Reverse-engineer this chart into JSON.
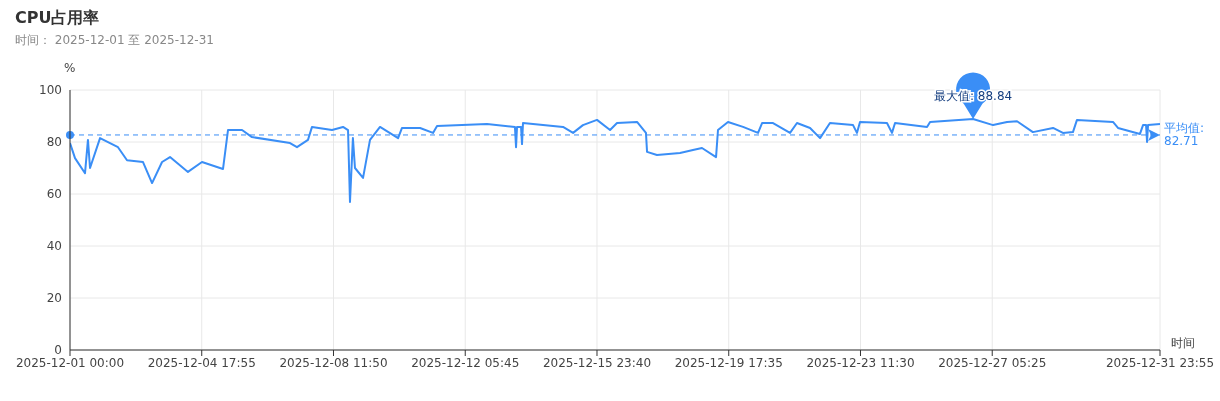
{
  "chart_data": {
    "type": "line",
    "title": "CPU占用率",
    "subtitle": "时间： 2025-12-01 至 2025-12-31",
    "xlabel": "时间",
    "ylabel": "%",
    "x": [
      "2025-12-01T00:00",
      "2025-12-01T03:25",
      "2025-12-01T10:15",
      "2025-12-01T12:15",
      "2025-12-01T13:40",
      "2025-12-01T20:30",
      "2025-12-02T08:45",
      "2025-12-02T14:55",
      "2025-12-03T01:50",
      "2025-12-03T08:00",
      "2025-12-03T14:50",
      "2025-12-03T20:15",
      "2025-12-04T08:30",
      "2025-12-04T18:05",
      "2025-12-05T08:25",
      "2025-12-05T11:50",
      "2025-12-05T21:25",
      "2025-12-06T04:10",
      "2025-12-07T06:10",
      "2025-12-07T10:55",
      "2025-12-07T18:25",
      "2025-12-07T21:10",
      "2025-12-08T10:50",
      "2025-12-08T18:20",
      "2025-12-08T21:45",
      "2025-12-08T23:05",
      "2025-12-09T01:05",
      "2025-12-09T02:30",
      "2025-12-09T08:00",
      "2025-12-09T12:45",
      "2025-12-09T19:35",
      "2025-12-10T07:55",
      "2025-12-10T10:35",
      "2025-12-10T22:55",
      "2025-12-11T07:45",
      "2025-12-11T10:30",
      "2025-12-12T20:35",
      "2025-12-13T15:40",
      "2025-12-13T16:25",
      "2025-12-13T17:05",
      "2025-12-13T19:50",
      "2025-12-13T20:30",
      "2025-12-13T21:10",
      "2025-12-15T00:30",
      "2025-12-15T07:20",
      "2025-12-15T14:05",
      "2025-12-15T23:40",
      "2025-12-16T08:35",
      "2025-12-16T13:20",
      "2025-12-17T03:00",
      "2025-12-17T09:05",
      "2025-12-17T09:50",
      "2025-12-17T16:35",
      "2025-12-18T08:20",
      "2025-12-18T17:10",
      "2025-12-18T23:20",
      "2025-12-19T08:55",
      "2025-12-19T10:15",
      "2025-12-19T17:05",
      "2025-12-20T03:20",
      "2025-12-20T13:35",
      "2025-12-20T16:20",
      "2025-12-20T23:50",
      "2025-12-21T11:25",
      "2025-12-21T16:10",
      "2025-12-22T01:05",
      "2025-12-22T07:55",
      "2025-12-22T14:40",
      "2025-12-23T06:25",
      "2025-12-23T09:05",
      "2025-12-23T11:10",
      "2025-12-24T05:35",
      "2025-12-24T09:00",
      "2025-12-24T11:05",
      "2025-12-25T08:55",
      "2025-12-25T11:00",
      "2025-12-26T16:20",
      "2025-12-27T06:00",
      "2025-12-27T15:30",
      "2025-12-27T22:20",
      "2025-12-28T09:10",
      "2025-12-28T22:55",
      "2025-12-29T05:40",
      "2025-12-29T12:30",
      "2025-12-29T15:15",
      "2025-12-30T15:50",
      "2025-12-30T19:15",
      "2025-12-31T10:15",
      "2025-12-31T12:20",
      "2025-12-31T14:25",
      "2025-12-31T15:05",
      "2025-12-31T15:45",
      "2025-12-31T23:55"
    ],
    "series": [
      {
        "color": "#3a8ef6",
        "values": [
          79.6,
          73.8,
          68,
          80.8,
          70,
          81.5,
          78,
          73,
          72.3,
          64.2,
          72.3,
          74.2,
          68.5,
          72.3,
          69.6,
          84.6,
          84.6,
          81.9,
          79.6,
          78,
          80.8,
          85.8,
          84.6,
          85.8,
          84.6,
          56.9,
          81.5,
          70,
          66.2,
          80.8,
          85.8,
          81.5,
          85.4,
          85.4,
          83.5,
          86.2,
          86.9,
          85.8,
          78,
          85.8,
          85.8,
          79.2,
          87.3,
          85.8,
          83.5,
          86.5,
          88.5,
          84.6,
          87.3,
          87.7,
          83.5,
          76.2,
          75,
          75.8,
          76.9,
          77.7,
          74.2,
          84.6,
          87.7,
          85.8,
          83.5,
          87.3,
          87.3,
          83.5,
          87.3,
          85.4,
          81.5,
          87.3,
          86.5,
          83.5,
          87.7,
          87.3,
          83.5,
          87.3,
          85.8,
          87.7,
          88.84,
          86.5,
          87.7,
          88,
          83.8,
          85.4,
          83.5,
          83.8,
          88.5,
          87.7,
          85.4,
          83.1,
          86.5,
          86.5,
          80,
          86.5,
          86.9
        ]
      }
    ],
    "xlim": [
      "2025-12-01T00:00",
      "2025-12-31T23:55"
    ],
    "xticks": [
      {
        "value": "2025-12-01T00:00",
        "label": "2025-12-01 00:00"
      },
      {
        "value": "2025-12-04T17:55",
        "label": "2025-12-04 17:55"
      },
      {
        "value": "2025-12-08T11:50",
        "label": "2025-12-08 11:50"
      },
      {
        "value": "2025-12-12T05:45",
        "label": "2025-12-12 05:45"
      },
      {
        "value": "2025-12-15T23:40",
        "label": "2025-12-15 23:40"
      },
      {
        "value": "2025-12-19T17:35",
        "label": "2025-12-19 17:35"
      },
      {
        "value": "2025-12-23T11:30",
        "label": "2025-12-23 11:30"
      },
      {
        "value": "2025-12-27T05:25",
        "label": "2025-12-27 05:25"
      },
      {
        "value": "2025-12-31T23:55",
        "label": "2025-12-31 23:55"
      }
    ],
    "ylim": [
      0,
      100
    ],
    "yticks": [
      0,
      20,
      40,
      60,
      80,
      100
    ],
    "annotations": [
      {
        "text": "最大值: 88.84",
        "x": "2025-12-26T16:20",
        "y": 88.84
      }
    ],
    "ref_lines": [
      {
        "axis": "y",
        "value": 82.71,
        "label": "平均值: 82.71",
        "color": "#3a8ef6",
        "line_style": "dashed"
      }
    ],
    "grid": true,
    "legend": false,
    "marker": "none",
    "line_style": "solid"
  }
}
